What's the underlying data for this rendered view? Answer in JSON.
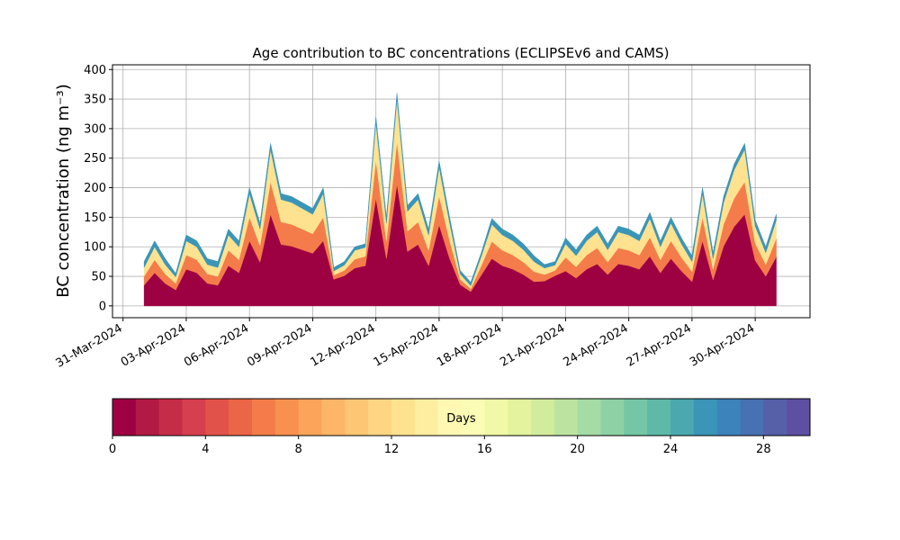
{
  "chart_data": {
    "type": "stacked_area",
    "title": "Age contribution to BC concentrations (ECLIPSEv6 and CAMS)",
    "y_label": "BC concentration (ng m⁻³)",
    "x": [
      1.0,
      1.5,
      2.0,
      2.5,
      3.0,
      3.5,
      4.0,
      4.5,
      5.0,
      5.5,
      6.0,
      6.5,
      7.0,
      7.5,
      8.0,
      8.5,
      9.0,
      9.5,
      10.0,
      10.5,
      11.0,
      11.5,
      12.0,
      12.5,
      13.0,
      13.5,
      14.0,
      14.5,
      15.0,
      15.5,
      16.0,
      16.5,
      17.0,
      17.5,
      18.0,
      18.5,
      19.0,
      19.5,
      20.0,
      20.5,
      21.0,
      21.5,
      22.0,
      22.5,
      23.0,
      23.5,
      24.0,
      24.5,
      25.0,
      25.5,
      26.0,
      26.5,
      27.0,
      27.5,
      28.0,
      28.5,
      29.0,
      29.5,
      30.0,
      30.5,
      31.0
    ],
    "series": [
      {
        "color": "#9e0142",
        "values": [
          35,
          56,
          38,
          27,
          62,
          56,
          38,
          35,
          68,
          56,
          110,
          74,
          155,
          104,
          101,
          95,
          89,
          110,
          45,
          51,
          64,
          68,
          182,
          80,
          206,
          92,
          104,
          68,
          137,
          80,
          36,
          24,
          52,
          80,
          68,
          62,
          53,
          41,
          42,
          51,
          59,
          47,
          62,
          71,
          53,
          71,
          68,
          62,
          84,
          56,
          80,
          59,
          41,
          110,
          44,
          101,
          134,
          155,
          77,
          50,
          83
        ]
      },
      {
        "color": "#f47c4a",
        "values": [
          15,
          22,
          16,
          11,
          24,
          22,
          16,
          15,
          26,
          22,
          40,
          28,
          55,
          38,
          37,
          35,
          33,
          40,
          7,
          9,
          15,
          16,
          64,
          30,
          72,
          34,
          38,
          26,
          49,
          30,
          9,
          5,
          16,
          29,
          26,
          24,
          21,
          17,
          11,
          9,
          23,
          19,
          24,
          27,
          21,
          27,
          26,
          24,
          32,
          22,
          30,
          23,
          17,
          40,
          18,
          37,
          48,
          55,
          29,
          20,
          31
        ]
      },
      {
        "color": "#fee28f",
        "values": [
          15,
          22,
          16,
          11,
          24,
          22,
          16,
          15,
          26,
          22,
          40,
          28,
          55,
          38,
          37,
          35,
          33,
          40,
          7,
          9,
          15,
          15,
          64,
          30,
          72,
          34,
          38,
          26,
          49,
          30,
          9,
          5,
          16,
          29,
          26,
          24,
          21,
          17,
          11,
          9,
          23,
          19,
          24,
          27,
          21,
          27,
          26,
          24,
          32,
          22,
          30,
          23,
          17,
          40,
          18,
          37,
          48,
          55,
          29,
          20,
          31
        ]
      },
      {
        "color": "#3b95b8",
        "values": [
          10,
          10,
          10,
          6,
          10,
          10,
          10,
          10,
          10,
          10,
          10,
          10,
          10,
          10,
          10,
          10,
          10,
          10,
          6,
          6,
          6,
          6,
          10,
          10,
          10,
          10,
          10,
          10,
          10,
          10,
          6,
          6,
          6,
          10,
          10,
          10,
          10,
          10,
          6,
          6,
          10,
          10,
          10,
          10,
          10,
          10,
          10,
          10,
          10,
          10,
          10,
          10,
          10,
          10,
          10,
          10,
          10,
          10,
          10,
          10,
          10
        ]
      }
    ],
    "xlim": [
      -0.5,
      32.6
    ],
    "xticks": [
      {
        "value": 0,
        "label": "31-Mar-2024"
      },
      {
        "value": 3,
        "label": "03-Apr-2024"
      },
      {
        "value": 6,
        "label": "06-Apr-2024"
      },
      {
        "value": 9,
        "label": "09-Apr-2024"
      },
      {
        "value": 12,
        "label": "12-Apr-2024"
      },
      {
        "value": 15,
        "label": "15-Apr-2024"
      },
      {
        "value": 18,
        "label": "18-Apr-2024"
      },
      {
        "value": 21,
        "label": "21-Apr-2024"
      },
      {
        "value": 24,
        "label": "24-Apr-2024"
      },
      {
        "value": 27,
        "label": "27-Apr-2024"
      },
      {
        "value": 30,
        "label": "30-Apr-2024"
      }
    ],
    "ylim": [
      -20,
      408
    ],
    "yticks": [
      0,
      50,
      100,
      150,
      200,
      250,
      300,
      350,
      400
    ],
    "grid": true,
    "colorbar": {
      "label": "Days",
      "lim": [
        0,
        30
      ],
      "ticks": [
        0,
        4,
        8,
        12,
        16,
        20,
        24,
        28
      ],
      "colors": [
        "#9e0142",
        "#b21a45",
        "#c52c48",
        "#d63f4e",
        "#e1534a",
        "#eb6646",
        "#f47c4a",
        "#f8914f",
        "#fba45a",
        "#fdb667",
        "#fdc674",
        "#fed582",
        "#fee28f",
        "#feee9f",
        "#fff8b2",
        "#fbfdb6",
        "#f1f9a9",
        "#e3f39e",
        "#d2ec9e",
        "#bce4a0",
        "#a5dba4",
        "#8ed1a4",
        "#75c6a5",
        "#5fb9a8",
        "#4aa8ae",
        "#3b95b8",
        "#3c83bb",
        "#4771b2",
        "#5560a9",
        "#5e4fa2"
      ]
    }
  }
}
